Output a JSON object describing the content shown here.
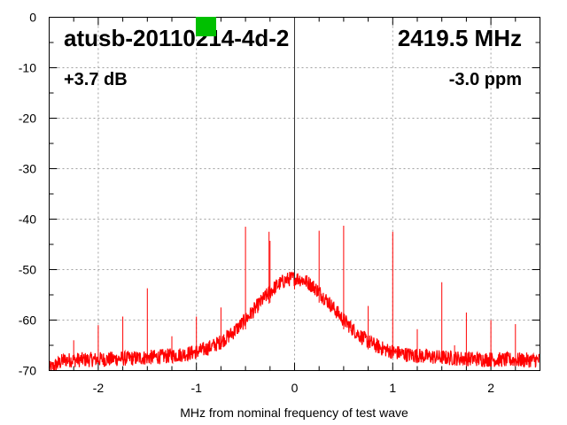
{
  "chart_data": {
    "type": "line",
    "title": "atusb-20110214-4d-2",
    "frequency_label": "2419.5 MHz",
    "gain_label": "+3.7 dB",
    "ppm_label": "-3.0 ppm",
    "xlabel": "MHz from nominal frequency of test wave",
    "ylabel": "",
    "xlim": [
      -2.5,
      2.5
    ],
    "ylim": [
      -70,
      0
    ],
    "xticks": [
      -2,
      -1,
      0,
      1,
      2
    ],
    "xtick_labels": [
      "-2",
      "-1",
      "0",
      "1",
      "2"
    ],
    "yticks": [
      0,
      -10,
      -20,
      -30,
      -40,
      -50,
      -60,
      -70
    ],
    "ytick_labels": [
      "0",
      "-10",
      "-20",
      "-30",
      "-40",
      "-50",
      "-60",
      "-70"
    ],
    "grid": true,
    "series_color": "#ff0000",
    "status_color": "#00c000",
    "noise_floor": {
      "base_db": -68,
      "peak_db": -52,
      "center_mhz": 0,
      "width_mhz": 0.55,
      "ripple_db": 1.5
    },
    "spurs": [
      {
        "x": -2.25,
        "y": -64
      },
      {
        "x": -2.0,
        "y": -61
      },
      {
        "x": -1.75,
        "y": -59.3
      },
      {
        "x": -1.5,
        "y": -53.7
      },
      {
        "x": -1.25,
        "y": -63.2
      },
      {
        "x": -1.0,
        "y": -59.3
      },
      {
        "x": -0.75,
        "y": -57.5
      },
      {
        "x": -0.5,
        "y": -41.5
      },
      {
        "x": -0.26,
        "y": -42.5
      },
      {
        "x": -0.25,
        "y": -44.3
      },
      {
        "x": 0.0,
        "y": 0
      },
      {
        "x": 0.25,
        "y": -42.3
      },
      {
        "x": 0.5,
        "y": -41.3
      },
      {
        "x": 0.75,
        "y": -57.2
      },
      {
        "x": 1.0,
        "y": -42.5
      },
      {
        "x": 1.25,
        "y": -61.8
      },
      {
        "x": 1.5,
        "y": -52.5
      },
      {
        "x": 1.63,
        "y": -65
      },
      {
        "x": 1.75,
        "y": -58.5
      },
      {
        "x": 2.0,
        "y": -60
      },
      {
        "x": 2.25,
        "y": -60.8
      },
      {
        "x": 2.5,
        "y": -65
      }
    ]
  }
}
